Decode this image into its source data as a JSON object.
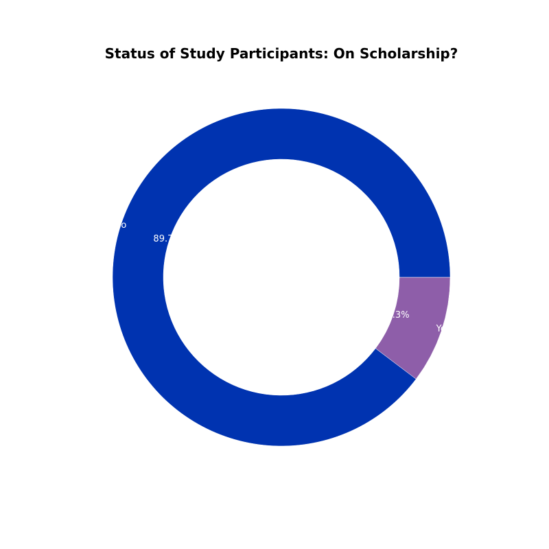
{
  "chart_data": {
    "type": "pie",
    "style": "donut",
    "title": "Status of Study Participants: On Scholarship?",
    "categories": [
      "Yes",
      "No"
    ],
    "values": [
      10.3,
      89.7
    ],
    "value_labels": [
      "10.3%",
      "89.7%"
    ],
    "colors": [
      "#8e5ea9",
      "#0033b0"
    ],
    "label_color": "#ffffff",
    "start_angle_deg": 0,
    "direction": "clockwise"
  }
}
